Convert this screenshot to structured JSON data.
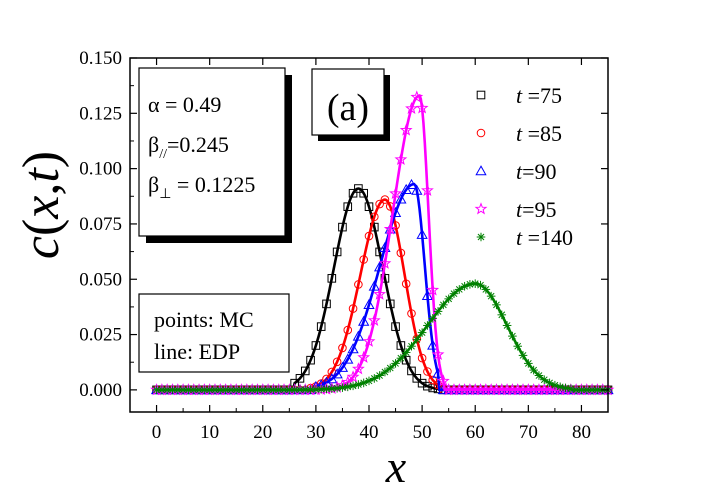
{
  "chart_data": {
    "type": "line",
    "xlabel": "x",
    "ylabel": "c(x,t)",
    "xlim": [
      -5,
      85
    ],
    "ylim": [
      -0.01,
      0.15
    ],
    "xticks": [
      "0",
      "10",
      "20",
      "30",
      "40",
      "50",
      "60",
      "70",
      "80"
    ],
    "yticks": [
      "0.000",
      "0.025",
      "0.050",
      "0.075",
      "0.100",
      "0.125",
      "0.150"
    ],
    "panel_label": "(a)",
    "params_box": [
      "α = 0.49",
      "β//=0.245",
      "β⊥ = 0.1225"
    ],
    "method_box": [
      "points: MC",
      "line: EDP"
    ],
    "legend": [
      "t =75",
      "t =85",
      "t=90",
      "t=95",
      "t =140"
    ],
    "series": [
      {
        "name": "t =75",
        "color": "#000000",
        "marker": "square",
        "peak_x": 38,
        "peak_y": 0.091,
        "sigma_left": 4.6,
        "sigma_right": 4.6,
        "support": [
          26,
          53
        ]
      },
      {
        "name": "t =85",
        "color": "#ff0000",
        "marker": "circle",
        "peak_x": 43,
        "peak_y": 0.086,
        "sigma_left": 4.6,
        "sigma_right": 3.7,
        "support": [
          29,
          53
        ]
      },
      {
        "name": "t=90",
        "color": "#0000ff",
        "marker": "triangle",
        "peak_x": 48.5,
        "peak_y": 0.093,
        "sigma_left": 6.4,
        "sigma_right": 2.0,
        "support": [
          30,
          53
        ]
      },
      {
        "name": "t=95",
        "color": "#ff00ff",
        "marker": "star",
        "peak_x": 49.5,
        "peak_y": 0.133,
        "sigma_left": 5.0,
        "sigma_right": 1.7,
        "support": [
          30,
          54
        ]
      },
      {
        "name": "t =140",
        "color": "#008000",
        "marker": "asterisk",
        "peak_x": 60,
        "peak_y": 0.048,
        "sigma_left": 9.0,
        "sigma_right": 6.0,
        "support": [
          22,
          78
        ]
      }
    ]
  }
}
